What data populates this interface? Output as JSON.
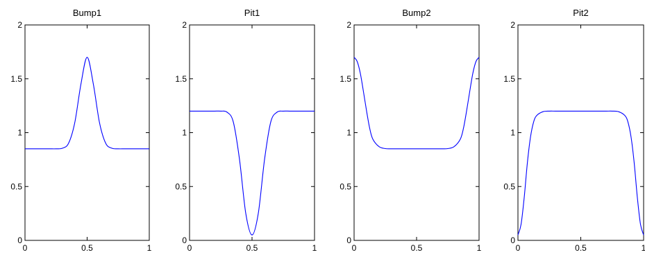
{
  "chart_data": [
    {
      "type": "line",
      "title": "Bump1",
      "xlim": [
        0,
        1
      ],
      "ylim": [
        0,
        2
      ],
      "xticks": [
        0,
        0.5,
        1
      ],
      "yticks": [
        0,
        0.5,
        1,
        1.5,
        2
      ],
      "xtick_labels": [
        "0",
        "0.5",
        "1"
      ],
      "ytick_labels": [
        "0",
        "0.5",
        "1",
        "1.5",
        "2"
      ],
      "grid": false,
      "color": "#0000ff",
      "series": [
        {
          "x": [
            0,
            0.05,
            0.1,
            0.15,
            0.2,
            0.25,
            0.3,
            0.35,
            0.4,
            0.45,
            0.5,
            0.55,
            0.6,
            0.65,
            0.7,
            0.75,
            0.8,
            0.85,
            0.9,
            0.95,
            1
          ],
          "values": [
            0.85,
            0.85,
            0.85,
            0.85,
            0.85,
            0.85,
            0.855,
            0.9,
            1.09,
            1.45,
            1.7,
            1.45,
            1.09,
            0.9,
            0.855,
            0.85,
            0.85,
            0.85,
            0.85,
            0.85,
            0.85
          ]
        }
      ]
    },
    {
      "type": "line",
      "title": "Pit1",
      "xlim": [
        0,
        1
      ],
      "ylim": [
        0,
        2
      ],
      "xticks": [
        0,
        0.5,
        1
      ],
      "yticks": [
        0,
        0.5,
        1,
        1.5,
        2
      ],
      "xtick_labels": [
        "0",
        "0.5",
        "1"
      ],
      "ytick_labels": [
        "0",
        "0.5",
        "1",
        "1.5",
        "2"
      ],
      "grid": false,
      "color": "#0000ff",
      "series": [
        {
          "x": [
            0,
            0.05,
            0.1,
            0.15,
            0.2,
            0.25,
            0.3,
            0.35,
            0.4,
            0.45,
            0.5,
            0.55,
            0.6,
            0.65,
            0.7,
            0.75,
            0.8,
            0.85,
            0.9,
            0.95,
            1
          ],
          "values": [
            1.2,
            1.2,
            1.2,
            1.2,
            1.2,
            1.2,
            1.19,
            1.1,
            0.75,
            0.25,
            0.05,
            0.25,
            0.75,
            1.1,
            1.19,
            1.2,
            1.2,
            1.2,
            1.2,
            1.2,
            1.2
          ]
        }
      ]
    },
    {
      "type": "line",
      "title": "Bump2",
      "xlim": [
        0,
        1
      ],
      "ylim": [
        0,
        2
      ],
      "xticks": [
        0,
        0.5,
        1
      ],
      "yticks": [
        0,
        0.5,
        1,
        1.5,
        2
      ],
      "xtick_labels": [
        "0",
        "0.5",
        "1"
      ],
      "ytick_labels": [
        "0",
        "0.5",
        "1",
        "1.5",
        "2"
      ],
      "grid": false,
      "color": "#0000ff",
      "series": [
        {
          "x": [
            0,
            0.025,
            0.05,
            0.075,
            0.1,
            0.125,
            0.15,
            0.2,
            0.25,
            0.3,
            0.4,
            0.5,
            0.6,
            0.7,
            0.75,
            0.8,
            0.85,
            0.875,
            0.9,
            0.925,
            0.95,
            0.975,
            1
          ],
          "values": [
            1.7,
            1.66,
            1.55,
            1.38,
            1.2,
            1.04,
            0.94,
            0.87,
            0.852,
            0.85,
            0.85,
            0.85,
            0.85,
            0.85,
            0.852,
            0.87,
            0.94,
            1.04,
            1.2,
            1.38,
            1.55,
            1.66,
            1.7
          ]
        }
      ]
    },
    {
      "type": "line",
      "title": "Pit2",
      "xlim": [
        0,
        1
      ],
      "ylim": [
        0,
        2
      ],
      "xticks": [
        0,
        0.5,
        1
      ],
      "yticks": [
        0,
        0.5,
        1,
        1.5,
        2
      ],
      "xtick_labels": [
        "0",
        "0.5",
        "1"
      ],
      "ytick_labels": [
        "0",
        "0.5",
        "1",
        "1.5",
        "2"
      ],
      "grid": false,
      "color": "#0000ff",
      "series": [
        {
          "x": [
            0,
            0.025,
            0.05,
            0.075,
            0.1,
            0.125,
            0.15,
            0.2,
            0.25,
            0.3,
            0.4,
            0.5,
            0.6,
            0.7,
            0.75,
            0.8,
            0.85,
            0.875,
            0.9,
            0.925,
            0.95,
            0.975,
            1
          ],
          "values": [
            0.05,
            0.15,
            0.4,
            0.72,
            0.96,
            1.1,
            1.16,
            1.195,
            1.2,
            1.2,
            1.2,
            1.2,
            1.2,
            1.2,
            1.2,
            1.195,
            1.16,
            1.1,
            0.96,
            0.72,
            0.4,
            0.15,
            0.05
          ]
        }
      ]
    }
  ]
}
